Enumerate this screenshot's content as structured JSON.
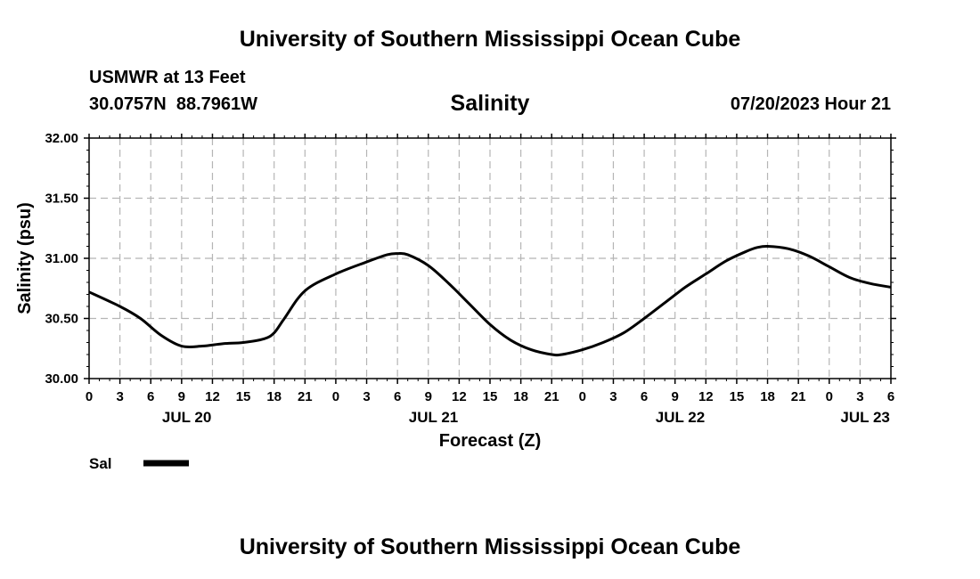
{
  "header": {
    "title_top": "University of Southern Mississippi Ocean Cube",
    "station": "USMWR at 13 Feet",
    "coords": "30.0757N  88.7961W",
    "timestamp": "07/20/2023 Hour 21"
  },
  "footer": {
    "title_bottom": "University of Southern Mississippi Ocean Cube"
  },
  "chart_data": {
    "type": "line",
    "title": "Salinity",
    "xlabel": "Forecast (Z)",
    "ylabel": "Salinity (psu)",
    "ylim": [
      30.0,
      32.0
    ],
    "xlim": [
      0,
      78
    ],
    "x_units": "hours since JUL 20 00Z",
    "grid": true,
    "y_ticks": [
      "30.00",
      "30.50",
      "31.00",
      "31.50",
      "32.00"
    ],
    "y_tick_values": [
      30.0,
      30.5,
      31.0,
      31.5,
      32.0
    ],
    "x_tick_labels": [
      "0",
      "3",
      "6",
      "9",
      "12",
      "15",
      "18",
      "21",
      "0",
      "3",
      "6",
      "9",
      "12",
      "15",
      "18",
      "21",
      "0",
      "3",
      "6",
      "9",
      "12",
      "15",
      "18",
      "21",
      "0",
      "3",
      "6"
    ],
    "date_labels": [
      {
        "label": "JUL 20",
        "hour": 9.5
      },
      {
        "label": "JUL 21",
        "hour": 33.5
      },
      {
        "label": "JUL 22",
        "hour": 57.5
      },
      {
        "label": "JUL 23",
        "hour": 75.5
      }
    ],
    "legend": {
      "label": "Sal",
      "placement": "bottom-left"
    },
    "series": [
      {
        "name": "Sal",
        "x": [
          0,
          3,
          5,
          7,
          9,
          11,
          13,
          15,
          17,
          18,
          19,
          21,
          24,
          27,
          29,
          30,
          31,
          33,
          35,
          37,
          39,
          41,
          43,
          45,
          46,
          48,
          50,
          52,
          54,
          56,
          58,
          60,
          62,
          64,
          65,
          66,
          68,
          70,
          72,
          74,
          76,
          78
        ],
        "values": [
          30.72,
          30.6,
          30.5,
          30.36,
          30.27,
          30.27,
          30.29,
          30.3,
          30.33,
          30.38,
          30.5,
          30.73,
          30.87,
          30.97,
          31.03,
          31.04,
          31.03,
          30.94,
          30.79,
          30.62,
          30.45,
          30.32,
          30.24,
          30.2,
          30.2,
          30.24,
          30.3,
          30.38,
          30.5,
          30.63,
          30.76,
          30.87,
          30.98,
          31.06,
          31.09,
          31.1,
          31.08,
          31.02,
          30.93,
          30.84,
          30.79,
          30.76
        ]
      }
    ]
  }
}
